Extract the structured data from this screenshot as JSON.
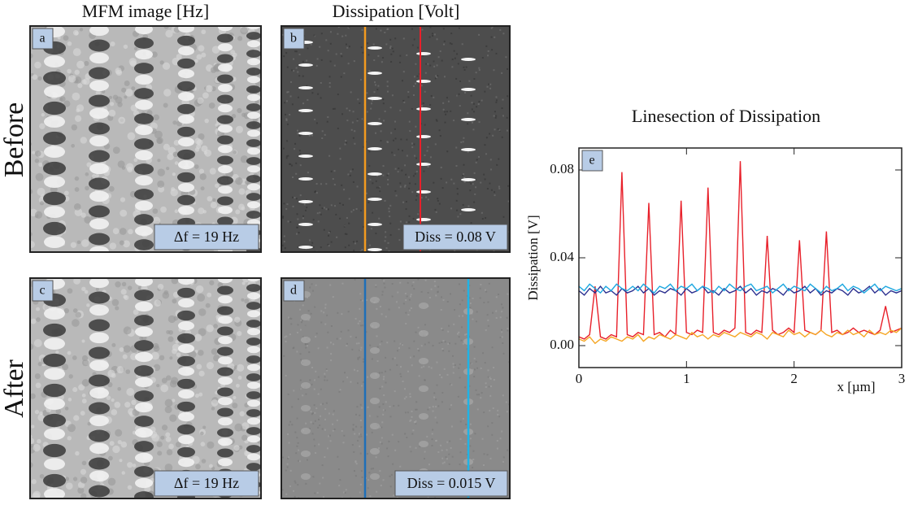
{
  "columns": [
    "MFM image  [Hz]",
    "Dissipation [Volt]"
  ],
  "rows": [
    "Before",
    "After"
  ],
  "panels": [
    {
      "label": "a",
      "annotation": "Δf = 19 Hz"
    },
    {
      "label": "b",
      "annotation": "Diss = 0.08 V"
    },
    {
      "label": "c",
      "annotation": "Δf = 19 Hz"
    },
    {
      "label": "d",
      "annotation": "Diss = 0.015 V"
    }
  ],
  "chart_data": {
    "type": "line",
    "title": "Linesection of Dissipation",
    "panel_label": "e",
    "xlabel": "x [µm]",
    "ylabel": "Dissipation [V]",
    "xlim": [
      0,
      3
    ],
    "xticks": [
      0,
      1,
      2,
      3
    ],
    "ylim": [
      -0.01,
      0.09
    ],
    "yticks": [
      {
        "value": 0,
        "label": "0.00"
      },
      {
        "value": 0.04,
        "label": "0.04"
      },
      {
        "value": 0.08,
        "label": "0.08"
      }
    ],
    "x": [
      0,
      0.05,
      0.1,
      0.15,
      0.2,
      0.25,
      0.3,
      0.35,
      0.4,
      0.45,
      0.5,
      0.55,
      0.6,
      0.65,
      0.7,
      0.75,
      0.8,
      0.85,
      0.9,
      0.95,
      1,
      1.05,
      1.1,
      1.15,
      1.2,
      1.25,
      1.3,
      1.35,
      1.4,
      1.45,
      1.5,
      1.55,
      1.6,
      1.65,
      1.7,
      1.75,
      1.8,
      1.85,
      1.9,
      1.95,
      2,
      2.05,
      2.1,
      2.15,
      2.2,
      2.25,
      2.3,
      2.35,
      2.4,
      2.45,
      2.5,
      2.55,
      2.6,
      2.65,
      2.7,
      2.75,
      2.8,
      2.85,
      2.9,
      2.95,
      3
    ],
    "series": [
      {
        "color": "#e8202a",
        "values": [
          0.004,
          0.003,
          0.005,
          0.027,
          0.004,
          0.003,
          0.005,
          0.004,
          0.079,
          0.005,
          0.004,
          0.006,
          0.005,
          0.065,
          0.005,
          0.006,
          0.004,
          0.007,
          0.005,
          0.066,
          0.006,
          0.005,
          0.007,
          0.006,
          0.072,
          0.006,
          0.005,
          0.007,
          0.006,
          0.008,
          0.084,
          0.006,
          0.005,
          0.007,
          0.006,
          0.05,
          0.007,
          0.005,
          0.006,
          0.008,
          0.006,
          0.048,
          0.007,
          0.006,
          0.005,
          0.007,
          0.052,
          0.006,
          0.007,
          0.005,
          0.006,
          0.008,
          0.006,
          0.007,
          0.006,
          0.005,
          0.007,
          0.018,
          0.006,
          0.007,
          0.008
        ]
      },
      {
        "color": "#f5a623",
        "values": [
          0.003,
          0.002,
          0.004,
          0.001,
          0.003,
          0.002,
          0.004,
          0.003,
          0.002,
          0.004,
          0.003,
          0.005,
          0.002,
          0.004,
          0.003,
          0.005,
          0.004,
          0.003,
          0.005,
          0.004,
          0.003,
          0.006,
          0.004,
          0.005,
          0.003,
          0.005,
          0.004,
          0.006,
          0.005,
          0.004,
          0.006,
          0.005,
          0.004,
          0.006,
          0.005,
          0.003,
          0.006,
          0.005,
          0.004,
          0.007,
          0.005,
          0.006,
          0.004,
          0.006,
          0.005,
          0.007,
          0.005,
          0.004,
          0.006,
          0.005,
          0.007,
          0.005,
          0.006,
          0.004,
          0.007,
          0.005,
          0.006,
          0.005,
          0.007,
          0.006,
          0.008
        ]
      },
      {
        "color": "#2b2f8f",
        "values": [
          0.025,
          0.023,
          0.026,
          0.024,
          0.027,
          0.024,
          0.025,
          0.023,
          0.026,
          0.024,
          0.025,
          0.027,
          0.024,
          0.026,
          0.023,
          0.025,
          0.024,
          0.026,
          0.025,
          0.023,
          0.026,
          0.024,
          0.025,
          0.027,
          0.024,
          0.025,
          0.023,
          0.026,
          0.024,
          0.025,
          0.027,
          0.024,
          0.026,
          0.023,
          0.025,
          0.024,
          0.026,
          0.025,
          0.023,
          0.026,
          0.024,
          0.025,
          0.027,
          0.024,
          0.026,
          0.023,
          0.025,
          0.024,
          0.026,
          0.025,
          0.023,
          0.026,
          0.024,
          0.025,
          0.027,
          0.024,
          0.026,
          0.023,
          0.025,
          0.024,
          0.025
        ]
      },
      {
        "color": "#1fa8e0",
        "values": [
          0.027,
          0.025,
          0.028,
          0.026,
          0.024,
          0.027,
          0.025,
          0.028,
          0.026,
          0.025,
          0.027,
          0.025,
          0.028,
          0.026,
          0.024,
          0.027,
          0.026,
          0.028,
          0.025,
          0.027,
          0.026,
          0.028,
          0.025,
          0.027,
          0.026,
          0.024,
          0.027,
          0.025,
          0.028,
          0.026,
          0.025,
          0.027,
          0.028,
          0.025,
          0.026,
          0.027,
          0.024,
          0.026,
          0.028,
          0.025,
          0.027,
          0.026,
          0.025,
          0.028,
          0.026,
          0.024,
          0.027,
          0.025,
          0.026,
          0.028,
          0.025,
          0.027,
          0.026,
          0.024,
          0.026,
          0.028,
          0.025,
          0.027,
          0.026,
          0.025,
          0.026
        ]
      }
    ]
  }
}
